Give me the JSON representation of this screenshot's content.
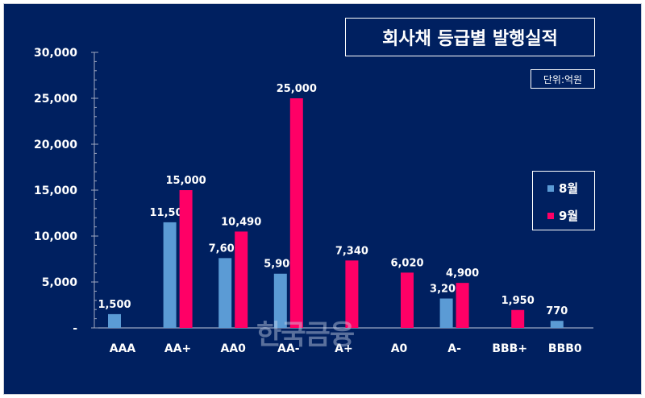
{
  "chart_data": {
    "type": "bar",
    "title": "회사채 등급별 발행실적",
    "unit": "단위:억원",
    "categories": [
      "AAA",
      "AA+",
      "AA0",
      "AA-",
      "A+",
      "A0",
      "A-",
      "BBB+",
      "BBB0"
    ],
    "series": [
      {
        "name": "8월",
        "color": "#5b9bd5",
        "values": [
          1500,
          11500,
          7600,
          5900,
          null,
          null,
          3200,
          null,
          770
        ]
      },
      {
        "name": "9월",
        "color": "#ff0066",
        "values": [
          null,
          15000,
          10490,
          25000,
          7340,
          6020,
          4900,
          1950,
          null
        ]
      }
    ],
    "ylim": [
      0,
      30000
    ],
    "yticks": [
      0,
      5000,
      10000,
      15000,
      20000,
      25000,
      30000
    ],
    "ytick_labels": [
      "-",
      "5,000",
      "10,000",
      "15,000",
      "20,000",
      "25,000",
      "30,000"
    ],
    "grid": false,
    "legend_position": "right",
    "background": "#002060"
  },
  "watermark": "한국금융"
}
